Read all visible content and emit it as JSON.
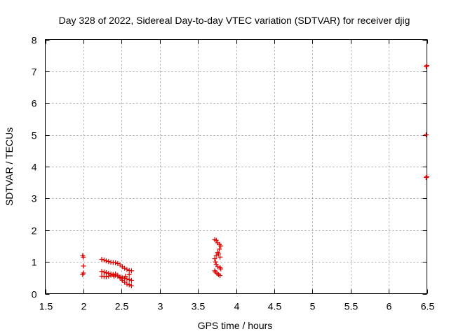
{
  "chart_data": {
    "type": "scatter",
    "title": "Day 328 of 2022, Sidereal Day-to-day VTEC variation (SDTVAR) for receiver djig",
    "xlabel": "GPS time / hours",
    "ylabel": "SDTVAR / TECUs",
    "xlim": [
      1.5,
      6.5
    ],
    "ylim": [
      0,
      8
    ],
    "xticks": [
      1.5,
      2,
      2.5,
      3,
      3.5,
      4,
      4.5,
      5,
      5.5,
      6,
      6.5
    ],
    "xtick_labels": [
      "1.5",
      "2",
      "2.5",
      "3",
      "3.5",
      "4",
      "4.5",
      "5",
      "5.5",
      "6",
      "6.5"
    ],
    "yticks": [
      0,
      1,
      2,
      3,
      4,
      5,
      6,
      7,
      8
    ],
    "ytick_labels": [
      "0",
      "1",
      "2",
      "3",
      "4",
      "5",
      "6",
      "7",
      "8"
    ],
    "grid": true,
    "marker": "plus",
    "color": "#e00000",
    "series": [
      {
        "name": "SDTVAR",
        "points": [
          [
            1.99,
            1.2
          ],
          [
            2.0,
            1.15
          ],
          [
            2.0,
            0.87
          ],
          [
            1.99,
            0.6
          ],
          [
            2.0,
            0.65
          ],
          [
            2.24,
            1.08
          ],
          [
            2.27,
            1.06
          ],
          [
            2.3,
            1.03
          ],
          [
            2.33,
            1.01
          ],
          [
            2.36,
            0.99
          ],
          [
            2.39,
            0.98
          ],
          [
            2.42,
            0.97
          ],
          [
            2.45,
            0.95
          ],
          [
            2.48,
            0.9
          ],
          [
            2.51,
            0.85
          ],
          [
            2.54,
            0.8
          ],
          [
            2.57,
            0.76
          ],
          [
            2.6,
            0.73
          ],
          [
            2.63,
            0.72
          ],
          [
            2.24,
            0.7
          ],
          [
            2.27,
            0.68
          ],
          [
            2.3,
            0.66
          ],
          [
            2.33,
            0.64
          ],
          [
            2.36,
            0.62
          ],
          [
            2.39,
            0.6
          ],
          [
            2.42,
            0.58
          ],
          [
            2.45,
            0.55
          ],
          [
            2.48,
            0.52
          ],
          [
            2.51,
            0.5
          ],
          [
            2.54,
            0.48
          ],
          [
            2.57,
            0.46
          ],
          [
            2.6,
            0.44
          ],
          [
            2.63,
            0.42
          ],
          [
            2.24,
            0.55
          ],
          [
            2.27,
            0.54
          ],
          [
            2.3,
            0.53
          ],
          [
            2.33,
            0.55
          ],
          [
            2.36,
            0.58
          ],
          [
            2.39,
            0.6
          ],
          [
            2.42,
            0.62
          ],
          [
            2.45,
            0.58
          ],
          [
            2.48,
            0.5
          ],
          [
            2.51,
            0.42
          ],
          [
            2.54,
            0.36
          ],
          [
            2.57,
            0.3
          ],
          [
            2.6,
            0.28
          ],
          [
            2.63,
            0.25
          ],
          [
            2.3,
            0.65
          ],
          [
            2.4,
            0.55
          ],
          [
            2.5,
            0.48
          ],
          [
            2.55,
            0.55
          ],
          [
            2.6,
            0.6
          ],
          [
            3.72,
            1.7
          ],
          [
            3.74,
            1.68
          ],
          [
            3.76,
            1.6
          ],
          [
            3.78,
            1.55
          ],
          [
            3.8,
            1.5
          ],
          [
            3.78,
            1.4
          ],
          [
            3.76,
            1.3
          ],
          [
            3.74,
            1.2
          ],
          [
            3.72,
            1.1
          ],
          [
            3.73,
            1.0
          ],
          [
            3.74,
            0.92
          ],
          [
            3.77,
            1.25
          ],
          [
            3.79,
            1.15
          ],
          [
            3.76,
            0.85
          ],
          [
            3.79,
            0.82
          ],
          [
            3.8,
            0.78
          ],
          [
            3.72,
            0.72
          ],
          [
            3.73,
            0.68
          ],
          [
            3.75,
            0.64
          ],
          [
            3.77,
            0.6
          ],
          [
            3.79,
            0.57
          ],
          [
            6.49,
            7.15
          ],
          [
            6.5,
            7.18
          ],
          [
            6.49,
            5.0
          ],
          [
            6.5,
            3.68
          ],
          [
            6.49,
            3.66
          ]
        ]
      }
    ]
  }
}
